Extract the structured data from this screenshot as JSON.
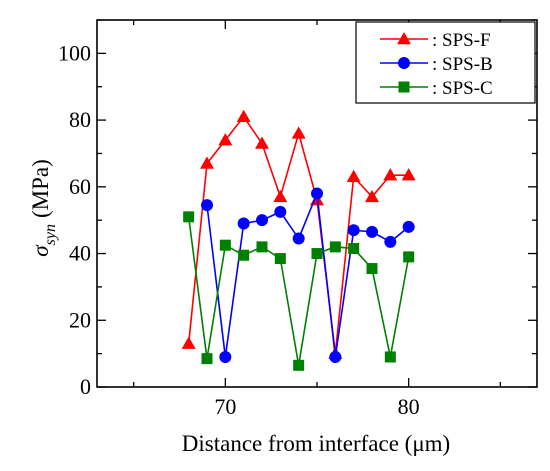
{
  "chart_data": {
    "type": "line",
    "xlabel": "Distance from interface (μm)",
    "ylabel_symbol": "σ",
    "ylabel_subscript": "syn",
    "ylabel_unit": "(MPa)",
    "xlim": [
      63,
      87
    ],
    "ylim": [
      0,
      110
    ],
    "x_ticks": [
      70,
      80
    ],
    "y_ticks": [
      0,
      20,
      40,
      60,
      80,
      100
    ],
    "grid": false,
    "legend_position": "top-right",
    "series": [
      {
        "name": ": SPS-F",
        "color": "#ff0000",
        "marker": "triangle",
        "x": [
          68,
          69,
          70,
          71,
          72,
          73,
          74,
          75,
          76,
          77,
          78,
          79,
          80
        ],
        "y": [
          13,
          67,
          74,
          81,
          73,
          57,
          76,
          56,
          10,
          63,
          57,
          63.5,
          63.5
        ]
      },
      {
        "name": ": SPS-B",
        "color": "#0000ff",
        "marker": "circle",
        "x": [
          69,
          70,
          71,
          72,
          73,
          74,
          75,
          76,
          77,
          78,
          79,
          80
        ],
        "y": [
          54.5,
          9,
          49,
          50,
          52.5,
          44.5,
          58,
          9,
          47,
          46.5,
          43.5,
          48
        ]
      },
      {
        "name": ": SPS-C",
        "color": "#008000",
        "marker": "square",
        "x": [
          68,
          69,
          70,
          71,
          72,
          73,
          74,
          75,
          76,
          77,
          78,
          79,
          80
        ],
        "y": [
          51,
          8.5,
          42.5,
          39.5,
          42,
          38.5,
          6.5,
          40,
          42,
          41.5,
          35.5,
          9,
          39
        ]
      }
    ]
  }
}
